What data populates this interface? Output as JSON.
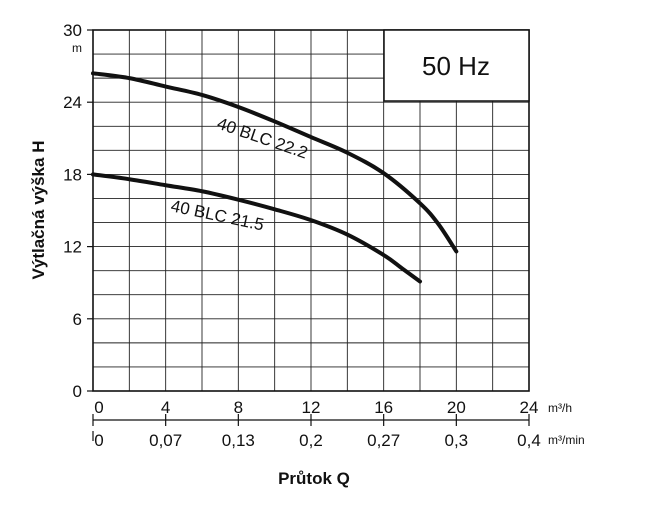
{
  "chart_data": {
    "type": "line",
    "title": "",
    "badge": "50 Hz",
    "ylabel": "Výtlačná výška H",
    "y_unit": "m",
    "xlabel": "Průtok Q",
    "ylim": [
      0,
      30
    ],
    "y_ticks": [
      "0",
      "6",
      "12",
      "18",
      "24",
      "30"
    ],
    "xlim": [
      0,
      24
    ],
    "x_ticks": [
      "0",
      "4",
      "8",
      "12",
      "16",
      "20",
      "24"
    ],
    "x_unit": "m³/h",
    "x2_ticks": [
      "0",
      "0,07",
      "0,13",
      "0,2",
      "0,27",
      "0,3",
      "0,4"
    ],
    "x2_unit": "m³/min",
    "grid": true,
    "series": [
      {
        "name": "40 BLC 22.2",
        "x": [
          0,
          2,
          4,
          6,
          8,
          10,
          12,
          14,
          16,
          18,
          19,
          20
        ],
        "y": [
          26.4,
          26.0,
          25.3,
          24.6,
          23.6,
          22.4,
          21.1,
          19.8,
          18.1,
          15.6,
          13.9,
          11.6
        ]
      },
      {
        "name": "40 BLC 21.5",
        "x": [
          0,
          2,
          4,
          6,
          8,
          10,
          12,
          14,
          16,
          17,
          18
        ],
        "y": [
          18.0,
          17.6,
          17.1,
          16.6,
          15.9,
          15.1,
          14.2,
          13.0,
          11.3,
          10.2,
          9.1
        ]
      }
    ]
  }
}
